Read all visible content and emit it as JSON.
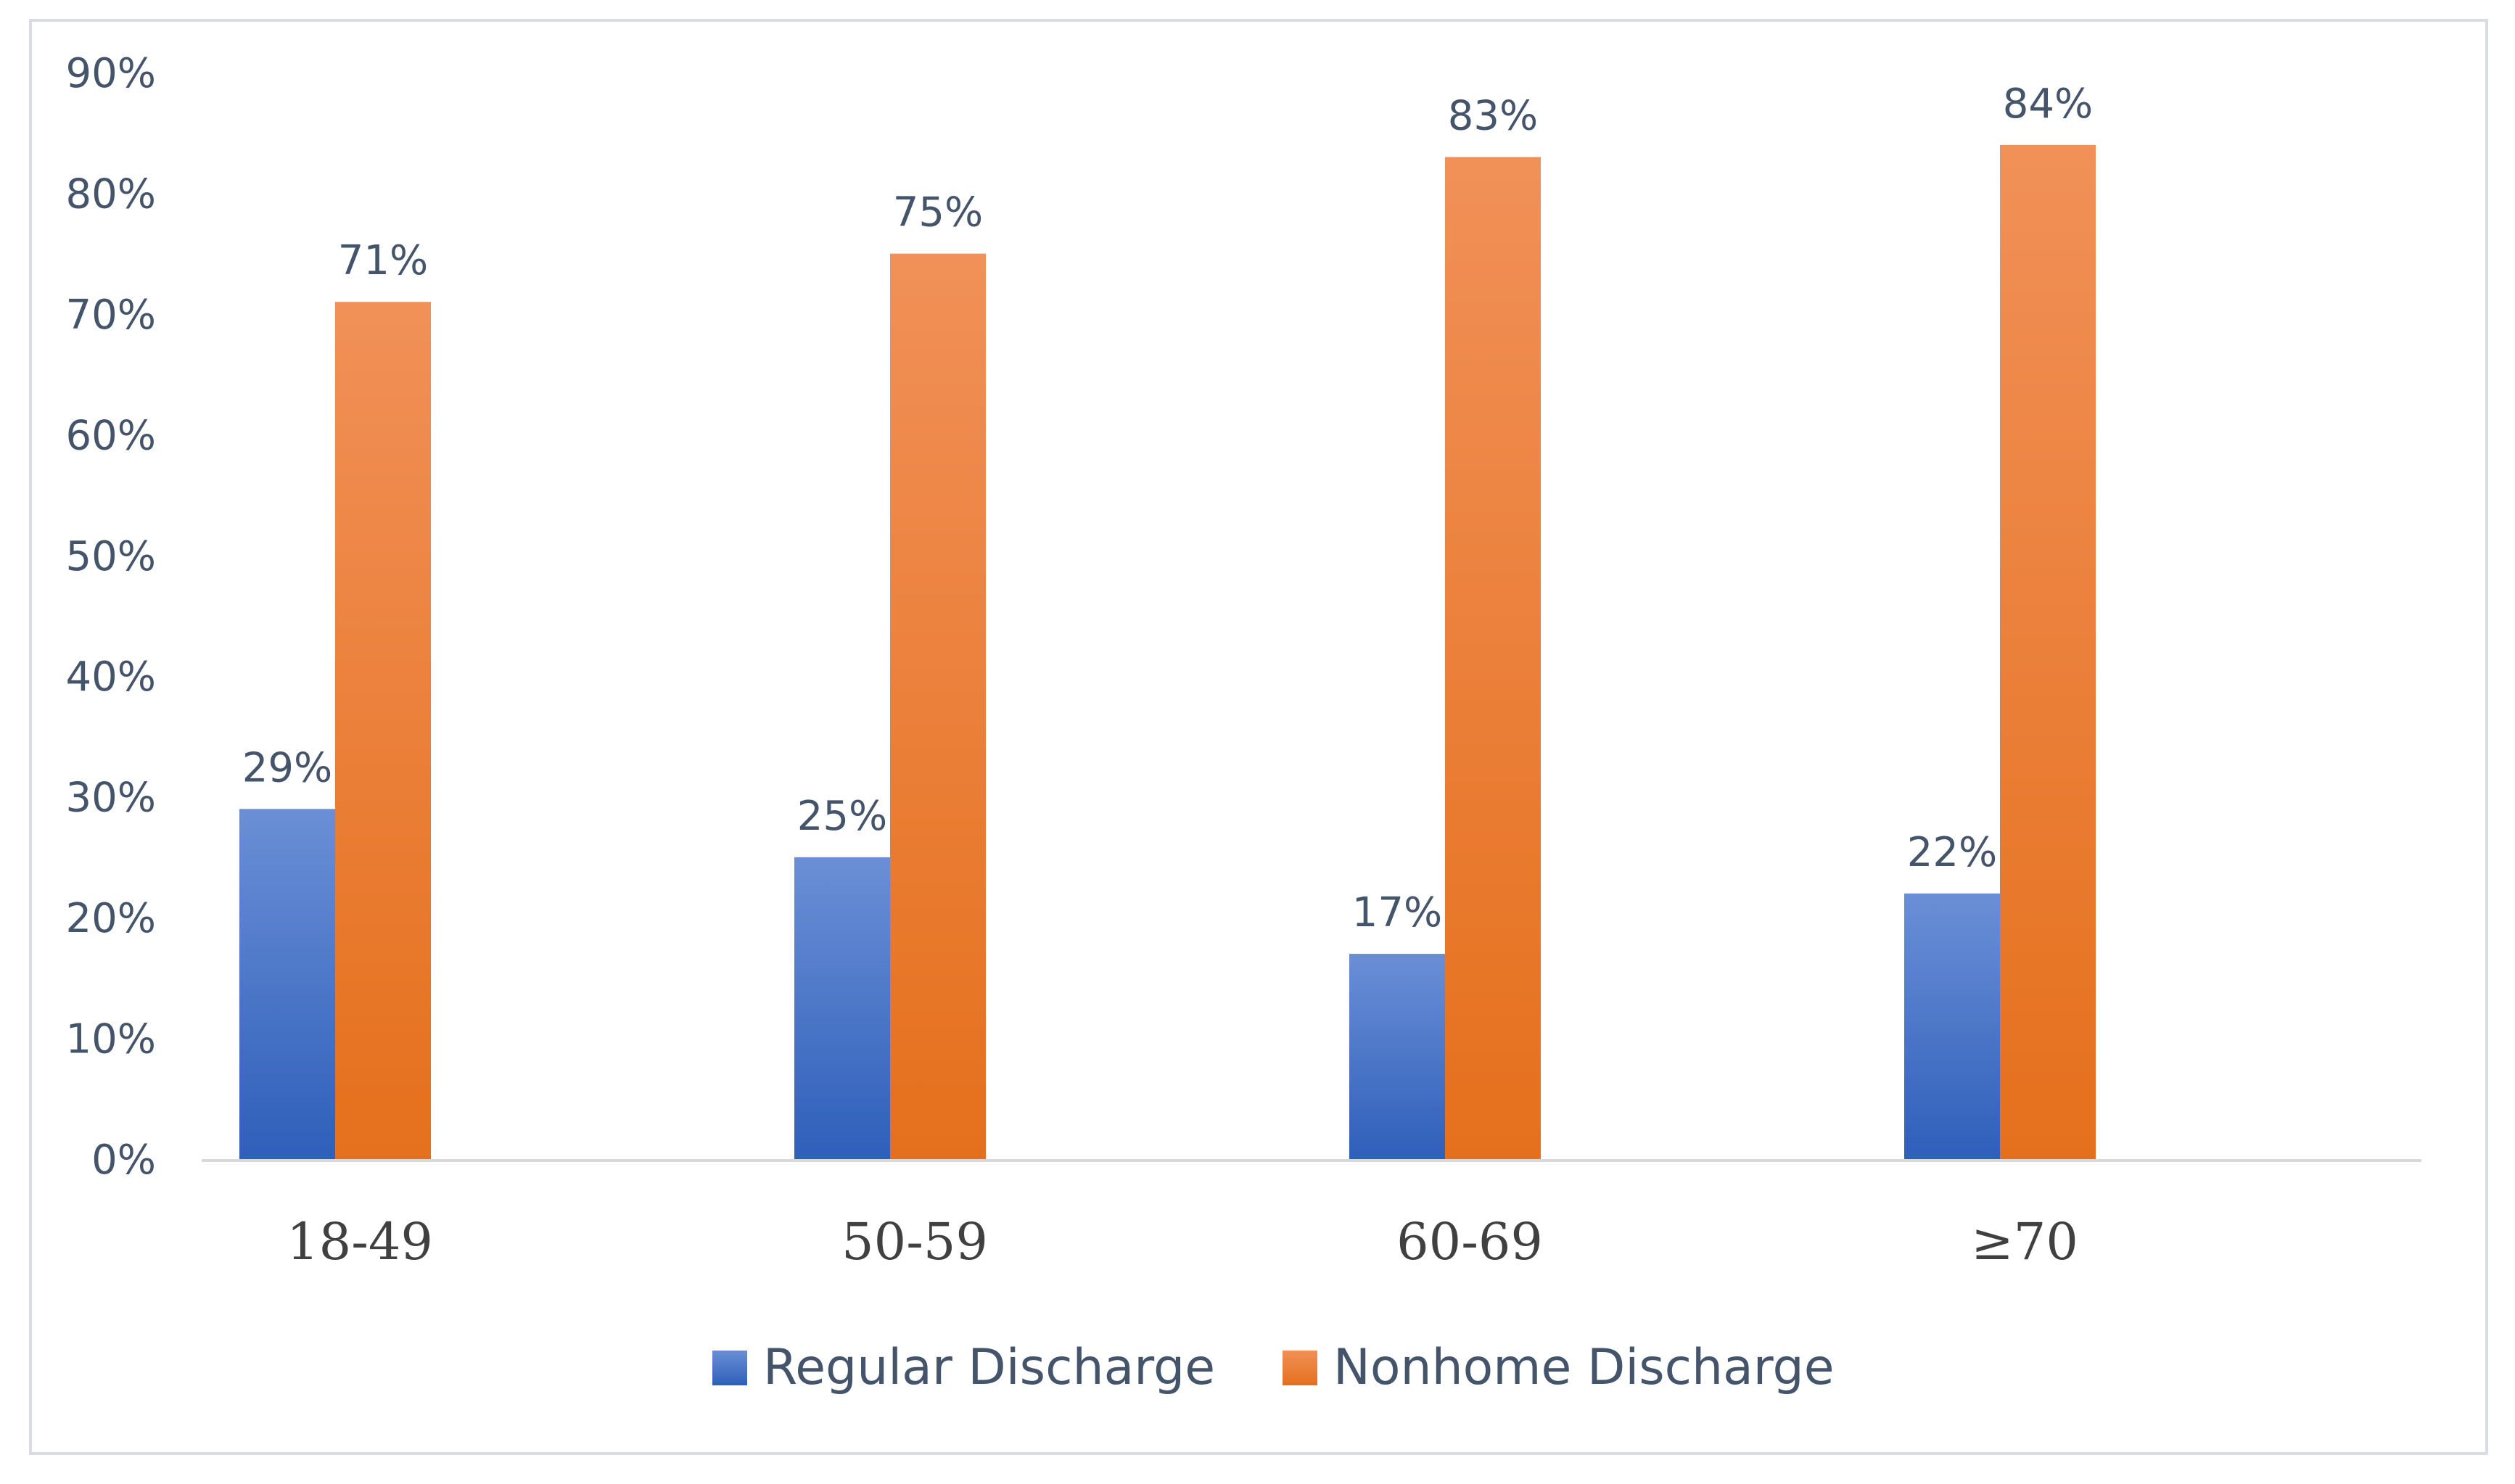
{
  "chart_data": {
    "type": "bar",
    "categories": [
      "18-49",
      "50-59",
      "60-69",
      "≥70"
    ],
    "series": [
      {
        "name": "Regular Discharge",
        "values": [
          29,
          25,
          17,
          22
        ],
        "labels": [
          "29%",
          "25%",
          "17%",
          "22%"
        ],
        "color": "#4472c4"
      },
      {
        "name": "Nonhome Discharge",
        "values": [
          71,
          75,
          83,
          84
        ],
        "labels": [
          "71%",
          "75%",
          "83%",
          "84%"
        ],
        "color": "#ed7d31"
      }
    ],
    "yticks": [
      "0%",
      "10%",
      "20%",
      "30%",
      "40%",
      "50%",
      "60%",
      "70%",
      "80%",
      "90%"
    ],
    "ylim": [
      0,
      90
    ],
    "grid": false,
    "legend_position": "bottom",
    "title": "",
    "xlabel": "",
    "ylabel": ""
  }
}
